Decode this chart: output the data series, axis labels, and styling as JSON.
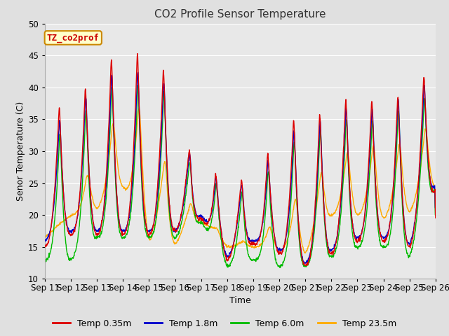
{
  "title": "CO2 Profile Sensor Temperature",
  "xlabel": "Time",
  "ylabel": "Senor Temperature (C)",
  "ylim": [
    10,
    50
  ],
  "fig_bg_color": "#e0e0e0",
  "plot_bg_color": "#e8e8e8",
  "grid_color": "white",
  "annotation_text": "TZ_co2prof",
  "annotation_bg": "#ffffcc",
  "annotation_border": "#cc8800",
  "annotation_text_color": "#cc0000",
  "series_colors": [
    "#dd0000",
    "#0000cc",
    "#00bb00",
    "#ffaa00"
  ],
  "series_labels": [
    "Temp 0.35m",
    "Temp 1.8m",
    "Temp 6.0m",
    "Temp 23.5m"
  ],
  "x_tick_labels": [
    "Sep 11",
    "Sep 12",
    "Sep 13",
    "Sep 14",
    "Sep 15",
    "Sep 16",
    "Sep 17",
    "Sep 18",
    "Sep 19",
    "Sep 20",
    "Sep 21",
    "Sep 22",
    "Sep 23",
    "Sep 24",
    "Sep 25",
    "Sep 26"
  ],
  "num_days": 15,
  "points_per_day": 96
}
